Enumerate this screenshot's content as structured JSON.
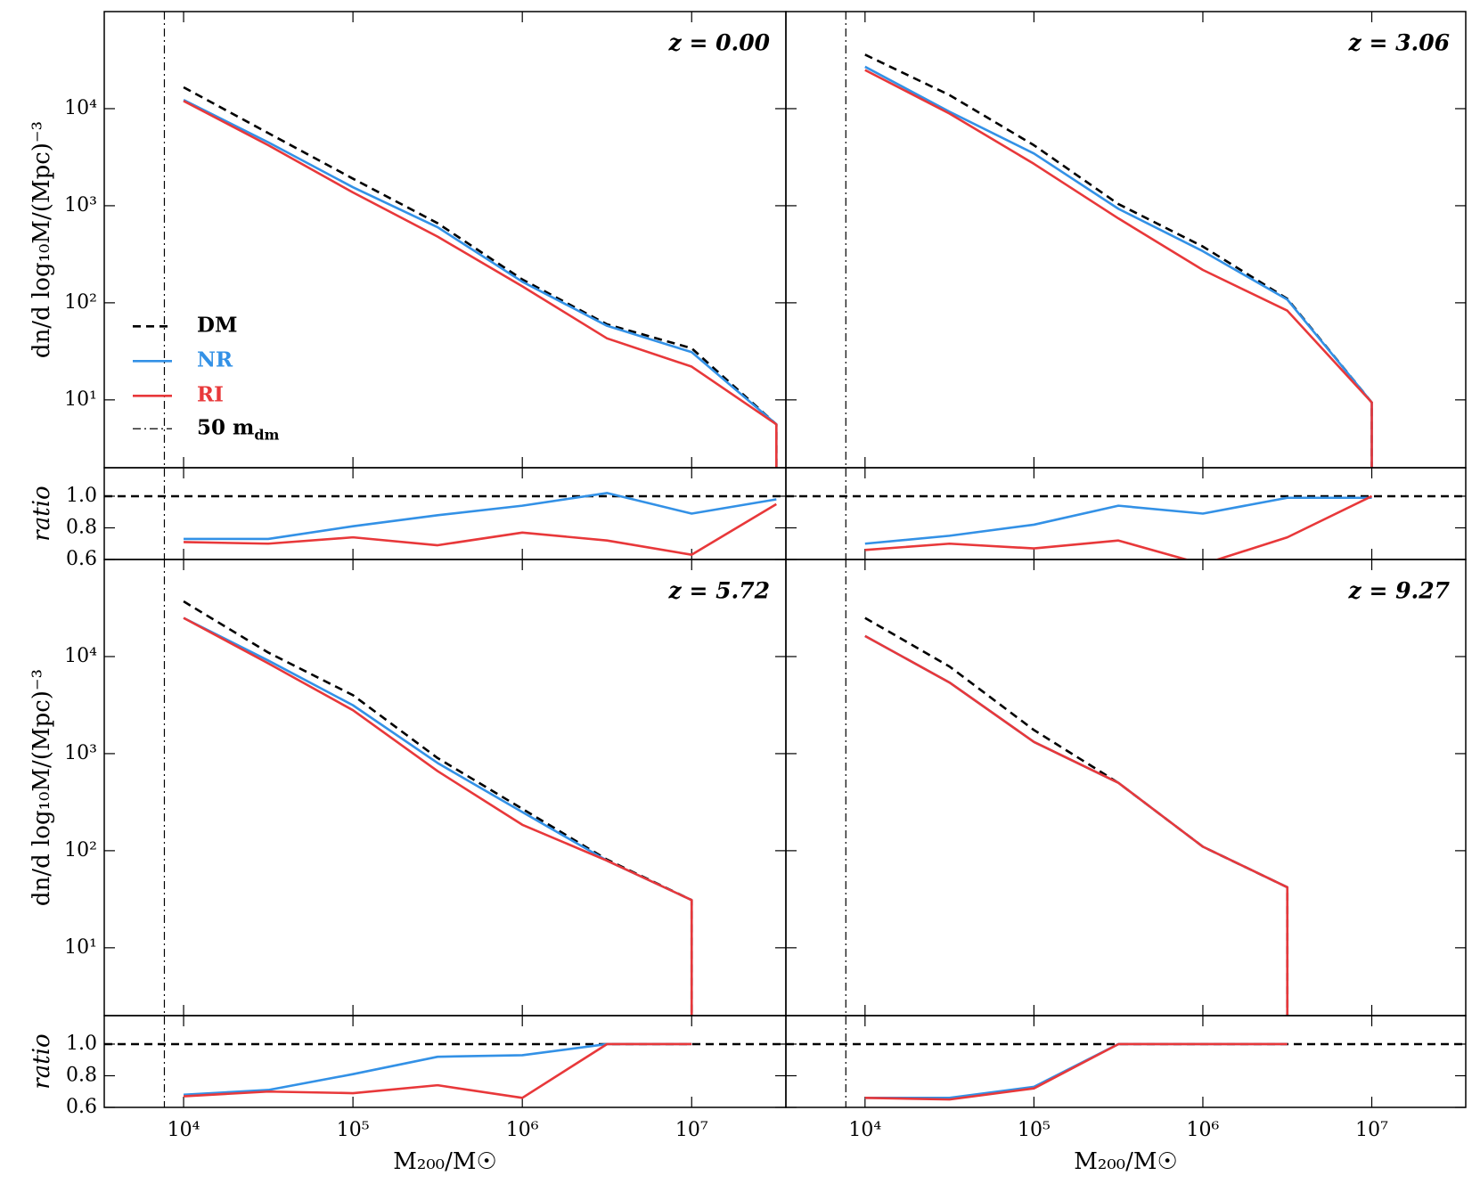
{
  "chart_data": [
    {
      "type": "line",
      "annotation": "z = 0.00",
      "ylabel": "dn/d log₁₀M/(Mpc)⁻³",
      "log_x": true,
      "log_y": true,
      "xlim": [
        3400,
        36000000
      ],
      "ylim": [
        2,
        100000
      ],
      "yticks": [
        {
          "value": 10,
          "label": "10¹"
        },
        {
          "value": 100,
          "label": "10²"
        },
        {
          "value": 1000,
          "label": "10³"
        },
        {
          "value": 10000,
          "label": "10⁴"
        }
      ],
      "legend": "center left",
      "vline": {
        "value": 7700,
        "name": "50 m",
        "subscript": "dm"
      },
      "x": [
        10000,
        31623,
        100000,
        316228,
        1000000,
        3162278,
        10000000,
        31622777,
        31622777
      ],
      "series": [
        {
          "name": "DM",
          "color": "#000000",
          "dash": true,
          "values": [
            16600,
            5600,
            1900,
            660,
            174,
            60,
            34,
            5.6,
            0
          ]
        },
        {
          "name": "NR",
          "color": "#3391e6",
          "values": [
            12300,
            4500,
            1550,
            600,
            165,
            58,
            31,
            5.6,
            0
          ]
        },
        {
          "name": "RI",
          "color": "#e8383a",
          "values": [
            12000,
            4200,
            1370,
            480,
            148,
            43,
            22,
            5.6,
            0
          ]
        }
      ]
    },
    {
      "type": "line",
      "annotation": "z = 3.06",
      "log_x": true,
      "log_y": true,
      "xlim": [
        3400,
        36000000
      ],
      "ylim": [
        2,
        100000
      ],
      "vline": {
        "value": 7700
      },
      "x": [
        10000,
        31623,
        100000,
        316228,
        1000000,
        3162278,
        10000000,
        10000000
      ],
      "series": [
        {
          "color": "#000000",
          "dash": true,
          "values": [
            36000,
            13800,
            4200,
            1040,
            380,
            110,
            9.4,
            0
          ]
        },
        {
          "color": "#3391e6",
          "values": [
            27000,
            9300,
            3450,
            930,
            340,
            108,
            9.4,
            0
          ]
        },
        {
          "color": "#e8383a",
          "values": [
            25000,
            8900,
            2700,
            740,
            218,
            83,
            9.4,
            0
          ]
        }
      ]
    },
    {
      "type": "line",
      "annotation": "z = 5.72",
      "ylabel": "dn/d log₁₀M/(Mpc)⁻³",
      "log_x": true,
      "log_y": true,
      "xlim": [
        3400,
        36000000
      ],
      "ylim": [
        2,
        100000
      ],
      "yticks": [
        {
          "value": 10,
          "label": "10¹"
        },
        {
          "value": 100,
          "label": "10²"
        },
        {
          "value": 1000,
          "label": "10³"
        },
        {
          "value": 10000,
          "label": "10⁴"
        }
      ],
      "vline": {
        "value": 7700
      },
      "x": [
        10000,
        31623,
        100000,
        316228,
        1000000,
        3162278,
        10000000,
        10000000
      ],
      "series": [
        {
          "color": "#000000",
          "dash": true,
          "values": [
            37000,
            11000,
            4000,
            900,
            270,
            81,
            31,
            0
          ]
        },
        {
          "color": "#3391e6",
          "values": [
            25000,
            9100,
            3150,
            800,
            250,
            79,
            31,
            0
          ]
        },
        {
          "color": "#e8383a",
          "values": [
            25000,
            8500,
            2800,
            660,
            185,
            79,
            31,
            0
          ]
        }
      ]
    },
    {
      "type": "line",
      "annotation": "z = 9.27",
      "log_x": true,
      "log_y": true,
      "xlim": [
        3400,
        36000000
      ],
      "ylim": [
        2,
        100000
      ],
      "vline": {
        "value": 7700
      },
      "x": [
        10000,
        31623,
        100000,
        316228,
        1000000,
        3162278,
        3162278
      ],
      "series": [
        {
          "color": "#000000",
          "dash": true,
          "values": [
            25000,
            7900,
            1750,
            500,
            110,
            42,
            0
          ]
        },
        {
          "color": "#3391e6",
          "values": [
            16300,
            5400,
            1320,
            500,
            110,
            42,
            0
          ]
        },
        {
          "color": "#e8383a",
          "values": [
            16300,
            5400,
            1320,
            500,
            110,
            42,
            0
          ]
        }
      ]
    },
    {
      "type": "line",
      "ylabel": "ratio",
      "log_x": true,
      "xlim": [
        3400,
        36000000
      ],
      "ylim": [
        0.6,
        1.18
      ],
      "yticks": [
        0.6,
        0.8,
        {
          "value": 1.0,
          "label": "1.0"
        }
      ],
      "reference_line": 1,
      "x": [
        10000,
        31623,
        100000,
        316228,
        1000000,
        3162278,
        10000000,
        31622777
      ],
      "series": [
        {
          "color": "#3391e6",
          "values": [
            0.73,
            0.73,
            0.81,
            0.88,
            0.94,
            1.02,
            0.89,
            0.98
          ]
        },
        {
          "color": "#e8383a",
          "values": [
            0.71,
            0.7,
            0.74,
            0.69,
            0.77,
            0.72,
            0.63,
            0.95
          ]
        }
      ]
    },
    {
      "type": "line",
      "log_x": true,
      "xlim": [
        3400,
        36000000
      ],
      "ylim": [
        0.6,
        1.18
      ],
      "reference_line": 1,
      "x": [
        10000,
        31623,
        100000,
        316228,
        1000000,
        3162278,
        10000000
      ],
      "series": [
        {
          "color": "#3391e6",
          "values": [
            0.7,
            0.75,
            0.82,
            0.94,
            0.89,
            0.99,
            0.99
          ]
        },
        {
          "color": "#e8383a",
          "values": [
            0.66,
            0.7,
            0.67,
            0.72,
            0.57,
            0.74,
            1.0
          ]
        }
      ]
    },
    {
      "type": "line",
      "ylabel": "ratio",
      "xlabel": "M₂₀₀/M☉",
      "log_x": true,
      "xlim": [
        3400,
        36000000
      ],
      "ylim": [
        0.6,
        1.18
      ],
      "yticks": [
        0.6,
        0.8,
        {
          "value": 1.0,
          "label": "1.0"
        }
      ],
      "reference_line": 1,
      "xticks": [
        {
          "value": 10000,
          "label": "10⁴"
        },
        {
          "value": 100000,
          "label": "10⁵"
        },
        {
          "value": 1000000,
          "label": "10⁶"
        },
        {
          "value": 10000000,
          "label": "10⁷"
        }
      ],
      "x": [
        10000,
        31623,
        100000,
        316228,
        1000000,
        3162278,
        10000000
      ],
      "series": [
        {
          "color": "#3391e6",
          "values": [
            0.68,
            0.71,
            0.81,
            0.92,
            0.93,
            1.0,
            1.0
          ]
        },
        {
          "color": "#e8383a",
          "values": [
            0.67,
            0.7,
            0.69,
            0.74,
            0.66,
            1.0,
            1.0
          ]
        }
      ]
    },
    {
      "type": "line",
      "xlabel": "M₂₀₀/M☉",
      "log_x": true,
      "xlim": [
        3400,
        36000000
      ],
      "ylim": [
        0.6,
        1.18
      ],
      "reference_line": 1,
      "xticks": [
        {
          "value": 10000,
          "label": "10⁴"
        },
        {
          "value": 100000,
          "label": "10⁵"
        },
        {
          "value": 1000000,
          "label": "10⁶"
        },
        {
          "value": 10000000,
          "label": "10⁷"
        }
      ],
      "x": [
        10000,
        31623,
        100000,
        316228,
        1000000,
        3162278
      ],
      "series": [
        {
          "color": "#3391e6",
          "values": [
            0.66,
            0.66,
            0.73,
            1.0,
            1.0,
            1.0
          ]
        },
        {
          "color": "#e8383a",
          "values": [
            0.66,
            0.65,
            0.72,
            1.0,
            1.0,
            1.0
          ]
        }
      ]
    }
  ]
}
